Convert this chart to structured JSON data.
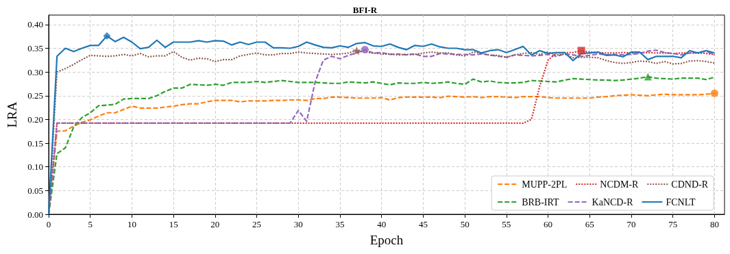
{
  "chart_data": {
    "type": "line",
    "title": "BFI-R",
    "xlabel": "Epoch",
    "ylabel": "LRA",
    "xlim": [
      0,
      81.2
    ],
    "xticks": [
      0,
      5,
      10,
      15,
      20,
      25,
      30,
      35,
      40,
      45,
      50,
      55,
      60,
      65,
      70,
      75,
      80
    ],
    "ylim": [
      0,
      0.42
    ],
    "yticks": [
      {
        "value": 0,
        "label": "0.00"
      },
      {
        "value": 0.05,
        "label": "0.05"
      },
      {
        "value": 0.1,
        "label": "0.10"
      },
      {
        "value": 0.15,
        "label": "0.15"
      },
      {
        "value": 0.2,
        "label": "0.20"
      },
      {
        "value": 0.25,
        "label": "0.25"
      },
      {
        "value": 0.3,
        "label": "0.30"
      },
      {
        "value": 0.35,
        "label": "0.35"
      },
      {
        "value": 0.4,
        "label": "0.40"
      }
    ],
    "grid": true,
    "legend": "bottom right",
    "marker": "none",
    "x": [
      0,
      1,
      2,
      3,
      4,
      5,
      6,
      7,
      8,
      9,
      10,
      11,
      12,
      13,
      14,
      15,
      16,
      17,
      18,
      19,
      20,
      21,
      22,
      23,
      24,
      25,
      26,
      27,
      28,
      29,
      30,
      31,
      32,
      33,
      34,
      35,
      36,
      37,
      38,
      39,
      40,
      41,
      42,
      43,
      44,
      45,
      46,
      47,
      48,
      49,
      50,
      51,
      52,
      53,
      54,
      55,
      56,
      57,
      58,
      59,
      60,
      61,
      62,
      63,
      64,
      65,
      66,
      67,
      68,
      69,
      70,
      71,
      72,
      73,
      74,
      75,
      76,
      77,
      78,
      79,
      80
    ],
    "series": [
      {
        "name": "MUPP-2PL",
        "color": "#ff7f0e",
        "line_style": "dashed",
        "values": [
          0,
          0.175,
          0.176,
          0.186,
          0.194,
          0.199,
          0.207,
          0.214,
          0.214,
          0.221,
          0.228,
          0.224,
          0.224,
          0.224,
          0.226,
          0.228,
          0.231,
          0.233,
          0.233,
          0.237,
          0.24,
          0.24,
          0.24,
          0.237,
          0.239,
          0.239,
          0.239,
          0.24,
          0.24,
          0.241,
          0.241,
          0.24,
          0.244,
          0.244,
          0.247,
          0.247,
          0.246,
          0.245,
          0.245,
          0.245,
          0.246,
          0.241,
          0.246,
          0.247,
          0.247,
          0.247,
          0.247,
          0.246,
          0.249,
          0.248,
          0.247,
          0.248,
          0.246,
          0.248,
          0.248,
          0.247,
          0.246,
          0.248,
          0.248,
          0.248,
          0.246,
          0.245,
          0.245,
          0.245,
          0.245,
          0.245,
          0.247,
          0.248,
          0.25,
          0.251,
          0.252,
          0.251,
          0.25,
          0.252,
          0.253,
          0.252,
          0.252,
          0.252,
          0.252,
          0.253,
          0.255
        ]
      },
      {
        "name": "BRB-IRT",
        "color": "#2ca02c",
        "line_style": "dashed",
        "values": [
          0,
          0.128,
          0.14,
          0.184,
          0.204,
          0.214,
          0.229,
          0.23,
          0.232,
          0.243,
          0.244,
          0.244,
          0.244,
          0.25,
          0.259,
          0.266,
          0.266,
          0.274,
          0.273,
          0.272,
          0.274,
          0.272,
          0.278,
          0.278,
          0.278,
          0.28,
          0.278,
          0.28,
          0.282,
          0.28,
          0.278,
          0.278,
          0.278,
          0.277,
          0.276,
          0.276,
          0.279,
          0.278,
          0.277,
          0.279,
          0.276,
          0.273,
          0.277,
          0.276,
          0.276,
          0.278,
          0.276,
          0.277,
          0.279,
          0.276,
          0.274,
          0.285,
          0.279,
          0.281,
          0.278,
          0.277,
          0.277,
          0.278,
          0.282,
          0.281,
          0.28,
          0.279,
          0.283,
          0.286,
          0.285,
          0.284,
          0.283,
          0.283,
          0.282,
          0.283,
          0.285,
          0.287,
          0.29,
          0.287,
          0.286,
          0.285,
          0.287,
          0.287,
          0.287,
          0.284,
          0.289
        ]
      },
      {
        "name": "NCDM-R",
        "color": "#d62728",
        "line_style": "dotted",
        "values": [
          0,
          0.192,
          0.192,
          0.192,
          0.192,
          0.192,
          0.192,
          0.192,
          0.192,
          0.192,
          0.192,
          0.192,
          0.192,
          0.192,
          0.192,
          0.192,
          0.192,
          0.192,
          0.192,
          0.192,
          0.192,
          0.192,
          0.192,
          0.192,
          0.192,
          0.192,
          0.192,
          0.192,
          0.192,
          0.192,
          0.192,
          0.192,
          0.192,
          0.192,
          0.192,
          0.192,
          0.192,
          0.192,
          0.192,
          0.192,
          0.192,
          0.192,
          0.192,
          0.192,
          0.192,
          0.192,
          0.192,
          0.192,
          0.192,
          0.192,
          0.192,
          0.192,
          0.192,
          0.192,
          0.192,
          0.192,
          0.192,
          0.192,
          0.2,
          0.27,
          0.325,
          0.34,
          0.341,
          0.341,
          0.345,
          0.342,
          0.341,
          0.34,
          0.34,
          0.341,
          0.34,
          0.34,
          0.341,
          0.34,
          0.34,
          0.339,
          0.34,
          0.34,
          0.34,
          0.339,
          0.337
        ]
      },
      {
        "name": "KaNCD-R",
        "color": "#9467bd",
        "line_style": "dashed",
        "values": [
          0,
          0.192,
          0.192,
          0.192,
          0.192,
          0.192,
          0.192,
          0.192,
          0.192,
          0.192,
          0.192,
          0.192,
          0.192,
          0.192,
          0.192,
          0.192,
          0.192,
          0.192,
          0.192,
          0.192,
          0.192,
          0.192,
          0.192,
          0.192,
          0.192,
          0.192,
          0.192,
          0.192,
          0.192,
          0.192,
          0.219,
          0.196,
          0.278,
          0.325,
          0.333,
          0.328,
          0.335,
          0.34,
          0.347,
          0.34,
          0.341,
          0.337,
          0.338,
          0.336,
          0.338,
          0.333,
          0.333,
          0.339,
          0.338,
          0.337,
          0.337,
          0.336,
          0.338,
          0.336,
          0.333,
          0.331,
          0.336,
          0.335,
          0.334,
          0.335,
          0.337,
          0.333,
          0.338,
          0.336,
          0.333,
          0.335,
          0.338,
          0.336,
          0.337,
          0.336,
          0.337,
          0.339,
          0.344,
          0.346,
          0.341,
          0.339,
          0.336,
          0.34,
          0.341,
          0.344,
          0.336
        ]
      },
      {
        "name": "CDND-R",
        "color": "#8c564b",
        "line_style": "dotted",
        "values": [
          0,
          0.3,
          0.307,
          0.316,
          0.326,
          0.335,
          0.334,
          0.333,
          0.334,
          0.337,
          0.334,
          0.339,
          0.332,
          0.334,
          0.334,
          0.343,
          0.331,
          0.325,
          0.329,
          0.328,
          0.322,
          0.326,
          0.326,
          0.334,
          0.337,
          0.34,
          0.336,
          0.336,
          0.339,
          0.339,
          0.342,
          0.34,
          0.339,
          0.338,
          0.337,
          0.338,
          0.34,
          0.345,
          0.342,
          0.34,
          0.338,
          0.338,
          0.336,
          0.337,
          0.337,
          0.34,
          0.342,
          0.34,
          0.34,
          0.336,
          0.334,
          0.342,
          0.34,
          0.335,
          0.335,
          0.331,
          0.336,
          0.339,
          0.341,
          0.337,
          0.342,
          0.336,
          0.338,
          0.33,
          0.331,
          0.331,
          0.33,
          0.324,
          0.32,
          0.318,
          0.32,
          0.323,
          0.322,
          0.318,
          0.322,
          0.317,
          0.318,
          0.323,
          0.324,
          0.322,
          0.319
        ]
      },
      {
        "name": "FCNLT",
        "color": "#1f77b4",
        "line_style": "solid",
        "values": [
          0,
          0.333,
          0.35,
          0.343,
          0.35,
          0.356,
          0.356,
          0.376,
          0.364,
          0.373,
          0.363,
          0.349,
          0.352,
          0.367,
          0.352,
          0.363,
          0.363,
          0.363,
          0.366,
          0.363,
          0.366,
          0.365,
          0.357,
          0.363,
          0.358,
          0.363,
          0.363,
          0.351,
          0.351,
          0.35,
          0.354,
          0.363,
          0.357,
          0.352,
          0.351,
          0.355,
          0.352,
          0.36,
          0.362,
          0.355,
          0.354,
          0.359,
          0.352,
          0.347,
          0.356,
          0.354,
          0.359,
          0.353,
          0.35,
          0.35,
          0.347,
          0.347,
          0.34,
          0.345,
          0.347,
          0.341,
          0.347,
          0.354,
          0.336,
          0.345,
          0.339,
          0.341,
          0.341,
          0.324,
          0.339,
          0.34,
          0.342,
          0.335,
          0.336,
          0.332,
          0.342,
          0.342,
          0.326,
          0.333,
          0.333,
          0.333,
          0.33,
          0.345,
          0.34,
          0.345,
          0.34
        ]
      },
      {
        "type": "scatter",
        "color": "#ff7f0e",
        "marker": "circle",
        "x": [
          80
        ],
        "values": [
          0.255
        ]
      },
      {
        "type": "scatter",
        "color": "#2ca02c",
        "marker": "triangle",
        "x": [
          72
        ],
        "values": [
          0.29
        ]
      },
      {
        "type": "scatter",
        "color": "#d62728",
        "marker": "square",
        "x": [
          64
        ],
        "values": [
          0.345
        ]
      },
      {
        "type": "scatter",
        "color": "#9467bd",
        "marker": "circle",
        "x": [
          38
        ],
        "values": [
          0.347
        ]
      },
      {
        "type": "scatter",
        "color": "#8c564b",
        "marker": "star",
        "x": [
          37
        ],
        "values": [
          0.345
        ]
      },
      {
        "type": "scatter",
        "color": "#1f77b4",
        "marker": "diamond",
        "x": [
          7
        ],
        "values": [
          0.376
        ]
      }
    ]
  }
}
